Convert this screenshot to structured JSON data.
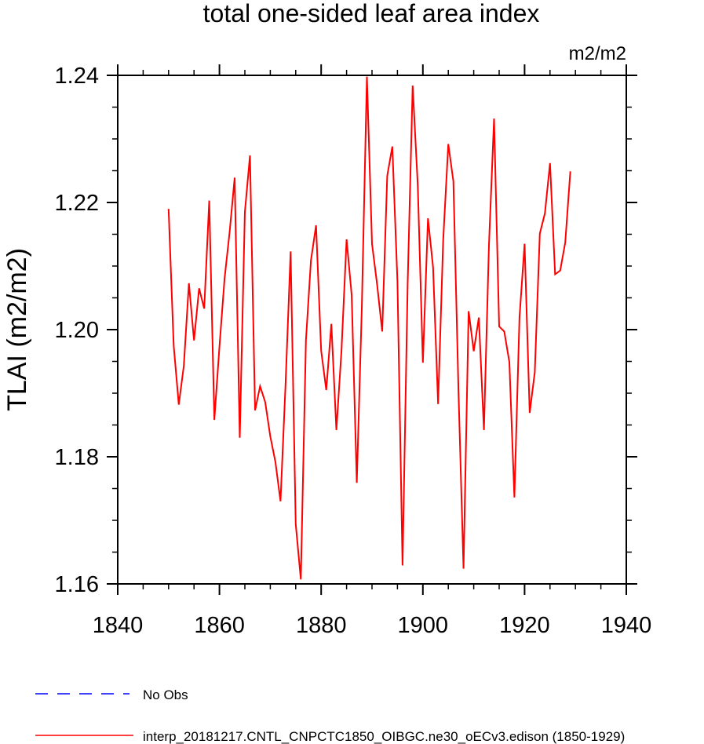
{
  "chart_data": {
    "type": "line",
    "title": "total one-sided leaf area index",
    "units": "m2/m2",
    "xlabel": "",
    "ylabel": "TLAI  (m2/m2)",
    "xlim": [
      1840,
      1940
    ],
    "ylim": [
      1.16,
      1.24
    ],
    "xticks": [
      1840,
      1860,
      1880,
      1900,
      1920,
      1940
    ],
    "xtick_labels": [
      "1840",
      "1860",
      "1880",
      "1900",
      "1920",
      "1940"
    ],
    "yticks": [
      1.16,
      1.18,
      1.2,
      1.22,
      1.24
    ],
    "ytick_labels": [
      "1.16",
      "1.18",
      "1.20",
      "1.22",
      "1.24"
    ],
    "grid": false,
    "legend": [
      {
        "label": "No Obs",
        "color": "#0000ff",
        "style": "dashed"
      },
      {
        "label": "interp_20181217.CNTL_CNPCTC1850_OIBGC.ne30_oECv3.edison (1850-1929)",
        "color": "#ff0000",
        "style": "solid"
      }
    ],
    "series": [
      {
        "name": "interp_20181217.CNTL_CNPCTC1850_OIBGC.ne30_oECv3.edison (1850-1929)",
        "color": "#ff0000",
        "x": [
          1850,
          1851,
          1852,
          1853,
          1854,
          1855,
          1856,
          1857,
          1858,
          1859,
          1860,
          1861,
          1862,
          1863,
          1864,
          1865,
          1866,
          1867,
          1868,
          1869,
          1870,
          1871,
          1872,
          1873,
          1874,
          1875,
          1876,
          1877,
          1878,
          1879,
          1880,
          1881,
          1882,
          1883,
          1884,
          1885,
          1886,
          1887,
          1888,
          1889,
          1890,
          1891,
          1892,
          1893,
          1894,
          1895,
          1896,
          1897,
          1898,
          1899,
          1900,
          1901,
          1902,
          1903,
          1904,
          1905,
          1906,
          1907,
          1908,
          1909,
          1910,
          1911,
          1912,
          1913,
          1914,
          1915,
          1916,
          1917,
          1918,
          1919,
          1920,
          1921,
          1922,
          1923,
          1924,
          1925,
          1926,
          1927,
          1928,
          1929
        ],
        "values": [
          1.219,
          1.1975,
          1.1882,
          1.1943,
          1.2073,
          1.1983,
          1.2065,
          1.2033,
          1.2203,
          1.1858,
          1.1973,
          1.208,
          1.2154,
          1.2239,
          1.183,
          1.2185,
          1.2274,
          1.1873,
          1.1911,
          1.1886,
          1.1832,
          1.1792,
          1.173,
          1.1913,
          1.2123,
          1.1694,
          1.1607,
          1.1983,
          1.2109,
          1.2164,
          1.1967,
          1.1905,
          1.2009,
          1.1842,
          1.1967,
          1.2142,
          1.2054,
          1.1759,
          1.2034,
          1.2398,
          1.2135,
          1.2071,
          1.1997,
          1.2242,
          1.2288,
          1.2076,
          1.1629,
          1.2071,
          1.2384,
          1.2227,
          1.1948,
          1.2175,
          1.2098,
          1.1883,
          1.2141,
          1.2292,
          1.2233,
          1.1902,
          1.1624,
          1.2029,
          1.1966,
          1.2019,
          1.1842,
          1.2133,
          1.2332,
          1.2005,
          1.1997,
          1.1949,
          1.1736,
          1.2019,
          1.2135,
          1.1869,
          1.1933,
          1.2151,
          1.2183,
          1.2262,
          1.2087,
          1.2093,
          1.2137,
          1.2249
        ]
      }
    ]
  }
}
